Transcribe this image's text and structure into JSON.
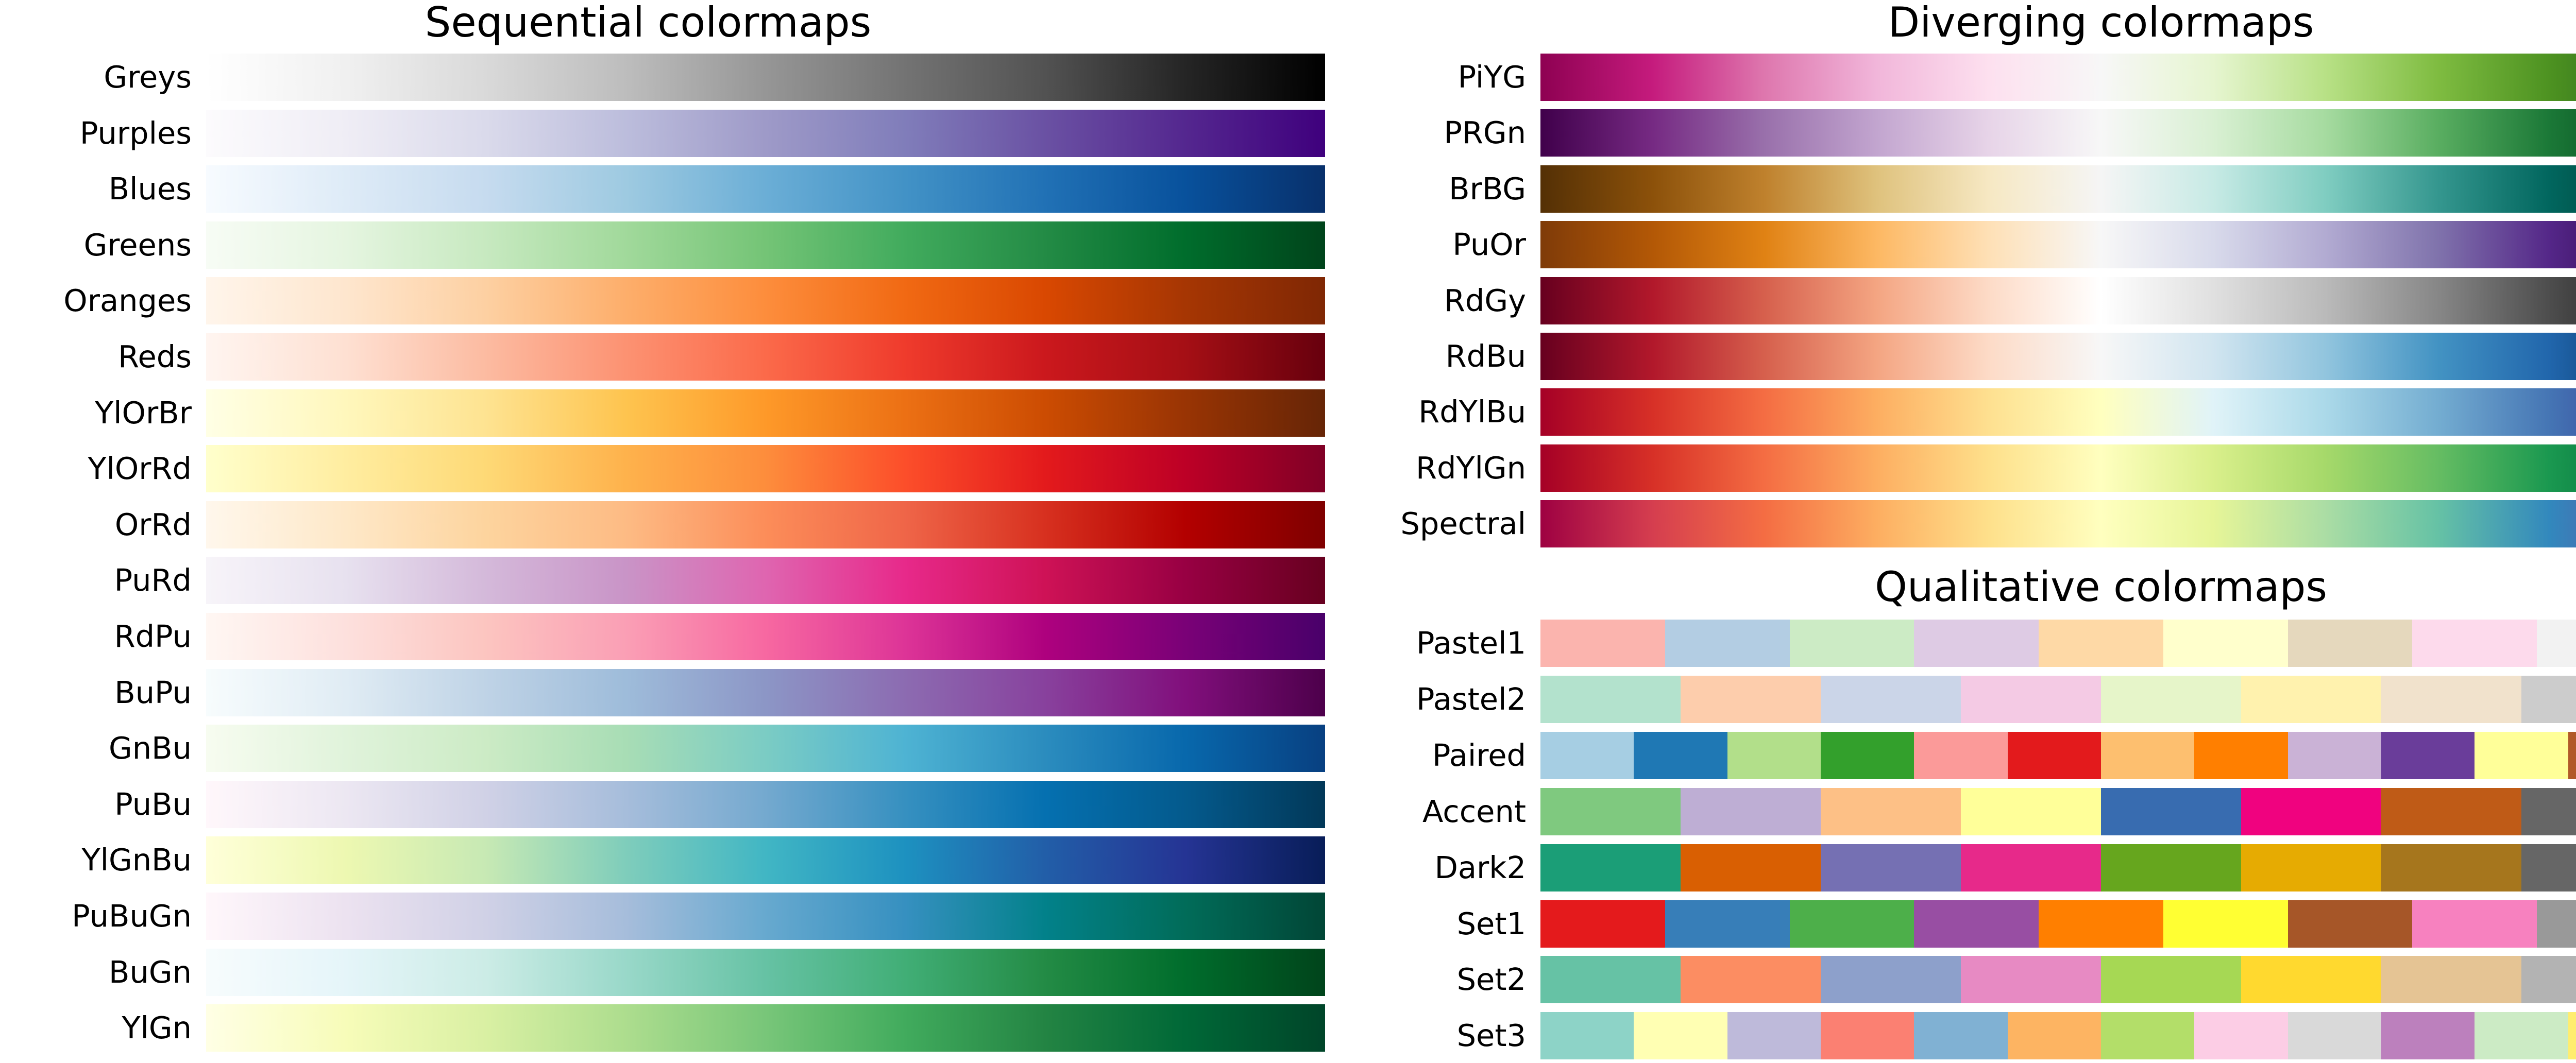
{
  "chart_data": [
    {
      "type": "heatmap",
      "title": "Sequential colormaps",
      "colormaps": [
        {
          "name": "Greys",
          "colors": [
            "#ffffff",
            "#f0f0f0",
            "#d9d9d9",
            "#bdbdbd",
            "#969696",
            "#737373",
            "#525252",
            "#252525",
            "#000000"
          ]
        },
        {
          "name": "Purples",
          "colors": [
            "#fcfbfd",
            "#efedf5",
            "#dadaeb",
            "#bcbddc",
            "#9e9ac8",
            "#807dba",
            "#6a51a3",
            "#54278f",
            "#3f007d"
          ]
        },
        {
          "name": "Blues",
          "colors": [
            "#f7fbff",
            "#deebf7",
            "#c6dbef",
            "#9ecae1",
            "#6baed6",
            "#4292c6",
            "#2171b5",
            "#08519c",
            "#08306b"
          ]
        },
        {
          "name": "Greens",
          "colors": [
            "#f7fcf5",
            "#e5f5e0",
            "#c7e9c0",
            "#a1d99b",
            "#74c476",
            "#41ab5d",
            "#238b45",
            "#006d2c",
            "#00441b"
          ]
        },
        {
          "name": "Oranges",
          "colors": [
            "#fff5eb",
            "#fee6ce",
            "#fdd0a2",
            "#fdae6b",
            "#fd8d3c",
            "#f16913",
            "#d94801",
            "#a63603",
            "#7f2704"
          ]
        },
        {
          "name": "Reds",
          "colors": [
            "#fff5f0",
            "#fee0d2",
            "#fcbba1",
            "#fc9272",
            "#fb6a4a",
            "#ef3b2c",
            "#cb181d",
            "#a50f15",
            "#67000d"
          ]
        },
        {
          "name": "YlOrBr",
          "colors": [
            "#ffffe5",
            "#fff7bc",
            "#fee391",
            "#fec44f",
            "#fe9929",
            "#ec7014",
            "#cc4c02",
            "#993404",
            "#662506"
          ]
        },
        {
          "name": "YlOrRd",
          "colors": [
            "#ffffcc",
            "#ffeda0",
            "#fed976",
            "#feb24c",
            "#fd8d3c",
            "#fc4e2a",
            "#e31a1c",
            "#bd0026",
            "#800026"
          ]
        },
        {
          "name": "OrRd",
          "colors": [
            "#fff7ec",
            "#fee8c8",
            "#fdd49e",
            "#fdbb84",
            "#fc8d59",
            "#ef6548",
            "#d7301f",
            "#b30000",
            "#7f0000"
          ]
        },
        {
          "name": "PuRd",
          "colors": [
            "#f7f4f9",
            "#e7e1ef",
            "#d4b9da",
            "#c994c7",
            "#df65b0",
            "#e7298a",
            "#ce1256",
            "#980043",
            "#67001f"
          ]
        },
        {
          "name": "RdPu",
          "colors": [
            "#fff7f3",
            "#fde0dd",
            "#fcc5c0",
            "#fa9fb5",
            "#f768a1",
            "#dd3497",
            "#ae017e",
            "#7a0177",
            "#49006a"
          ]
        },
        {
          "name": "BuPu",
          "colors": [
            "#f7fcfd",
            "#e0ecf4",
            "#bfd3e6",
            "#9ebcda",
            "#8c96c6",
            "#8c6bb1",
            "#88419d",
            "#810f7c",
            "#4d004b"
          ]
        },
        {
          "name": "GnBu",
          "colors": [
            "#f7fcf0",
            "#e0f3db",
            "#ccebc5",
            "#a8ddb5",
            "#7bccc4",
            "#4eb3d3",
            "#2b8cbe",
            "#0868ac",
            "#084081"
          ]
        },
        {
          "name": "PuBu",
          "colors": [
            "#fff7fb",
            "#ece7f2",
            "#d0d1e6",
            "#a6bddb",
            "#74a9cf",
            "#3690c0",
            "#0570b0",
            "#045a8d",
            "#023858"
          ]
        },
        {
          "name": "YlGnBu",
          "colors": [
            "#ffffd9",
            "#edf8b1",
            "#c7e9b4",
            "#7fcdbb",
            "#41b6c4",
            "#1d91c0",
            "#225ea8",
            "#253494",
            "#081d58"
          ]
        },
        {
          "name": "PuBuGn",
          "colors": [
            "#fff7fb",
            "#ece2f0",
            "#d0d1e6",
            "#a6bddb",
            "#67a9cf",
            "#3690c0",
            "#02818a",
            "#016c59",
            "#014636"
          ]
        },
        {
          "name": "BuGn",
          "colors": [
            "#f7fcfd",
            "#e5f5f9",
            "#ccece6",
            "#99d8c9",
            "#66c2a4",
            "#41ae76",
            "#238b45",
            "#006d2c",
            "#00441b"
          ]
        },
        {
          "name": "YlGn",
          "colors": [
            "#ffffe5",
            "#f7fcb9",
            "#d9f0a3",
            "#addd8e",
            "#78c679",
            "#41ab5d",
            "#238443",
            "#006837",
            "#004529"
          ]
        }
      ]
    },
    {
      "type": "heatmap",
      "title": "Diverging colormaps",
      "colormaps": [
        {
          "name": "PiYG",
          "colors": [
            "#8e0152",
            "#c51b7d",
            "#de77ae",
            "#f1b6da",
            "#fde0ef",
            "#f7f7f7",
            "#e6f5d0",
            "#b8e186",
            "#7fbc41",
            "#4d9221",
            "#276419"
          ]
        },
        {
          "name": "PRGn",
          "colors": [
            "#40004b",
            "#762a83",
            "#9970ab",
            "#c2a5cf",
            "#e7d4e8",
            "#f7f7f7",
            "#d9f0d3",
            "#a6dba0",
            "#5aae61",
            "#1b7837",
            "#00441b"
          ]
        },
        {
          "name": "BrBG",
          "colors": [
            "#543005",
            "#8c510a",
            "#bf812d",
            "#dfc27d",
            "#f6e8c3",
            "#f5f5f5",
            "#c7eae5",
            "#80cdc1",
            "#35978f",
            "#01665e",
            "#003c30"
          ]
        },
        {
          "name": "PuOr",
          "colors": [
            "#7f3b08",
            "#b35806",
            "#e08214",
            "#fdb863",
            "#fee0b6",
            "#f7f7f7",
            "#d8daeb",
            "#b2abd2",
            "#8073ac",
            "#542788",
            "#2d004b"
          ]
        },
        {
          "name": "RdGy",
          "colors": [
            "#67001f",
            "#b2182b",
            "#d6604d",
            "#f4a582",
            "#fddbc7",
            "#ffffff",
            "#e0e0e0",
            "#bababa",
            "#878787",
            "#4d4d4d",
            "#1a1a1a"
          ]
        },
        {
          "name": "RdBu",
          "colors": [
            "#67001f",
            "#b2182b",
            "#d6604d",
            "#f4a582",
            "#fddbc7",
            "#f7f7f7",
            "#d1e5f0",
            "#92c5de",
            "#4393c3",
            "#2166ac",
            "#053061"
          ]
        },
        {
          "name": "RdYlBu",
          "colors": [
            "#a50026",
            "#d73027",
            "#f46d43",
            "#fdae61",
            "#fee090",
            "#ffffbf",
            "#e0f3f8",
            "#abd9e9",
            "#74add1",
            "#4575b4",
            "#313695"
          ]
        },
        {
          "name": "RdYlGn",
          "colors": [
            "#a50026",
            "#d73027",
            "#f46d43",
            "#fdae61",
            "#fee08b",
            "#ffffbf",
            "#d9ef8b",
            "#a6d96a",
            "#66bd63",
            "#1a9850",
            "#006837"
          ]
        },
        {
          "name": "Spectral",
          "colors": [
            "#9e0142",
            "#d53e4f",
            "#f46d43",
            "#fdae61",
            "#fee08b",
            "#ffffbf",
            "#e6f598",
            "#abdda4",
            "#66c2a5",
            "#3288bd",
            "#5e4fa2"
          ]
        }
      ]
    },
    {
      "type": "heatmap",
      "title": "Qualitative colormaps",
      "colormaps": [
        {
          "name": "Pastel1",
          "colors": [
            "#fbb4ae",
            "#b3cde3",
            "#ccebc5",
            "#decbe4",
            "#fed9a6",
            "#ffffcc",
            "#e5d8bd",
            "#fddaec",
            "#f2f2f2"
          ]
        },
        {
          "name": "Pastel2",
          "colors": [
            "#b3e2cd",
            "#fdcdac",
            "#cbd5e8",
            "#f4cae4",
            "#e6f5c9",
            "#fff2ae",
            "#f1e2cc",
            "#cccccc"
          ]
        },
        {
          "name": "Paired",
          "colors": [
            "#a6cee3",
            "#1f78b4",
            "#b2df8a",
            "#33a02c",
            "#fb9a99",
            "#e31a1c",
            "#fdbf6f",
            "#ff7f00",
            "#cab2d6",
            "#6a3d9a",
            "#ffff99",
            "#b15928"
          ]
        },
        {
          "name": "Accent",
          "colors": [
            "#7fc97f",
            "#beaed4",
            "#fdc086",
            "#ffff99",
            "#386cb0",
            "#f0027f",
            "#bf5b17",
            "#666666"
          ]
        },
        {
          "name": "Dark2",
          "colors": [
            "#1b9e77",
            "#d95f02",
            "#7570b3",
            "#e7298a",
            "#66a61e",
            "#e6ab02",
            "#a6761d",
            "#666666"
          ]
        },
        {
          "name": "Set1",
          "colors": [
            "#e41a1c",
            "#377eb8",
            "#4daf4a",
            "#984ea3",
            "#ff7f00",
            "#ffff33",
            "#a65628",
            "#f781bf",
            "#999999"
          ]
        },
        {
          "name": "Set2",
          "colors": [
            "#66c2a5",
            "#fc8d62",
            "#8da0cb",
            "#e78ac3",
            "#a6d854",
            "#ffd92f",
            "#e5c494",
            "#b3b3b3"
          ]
        },
        {
          "name": "Set3",
          "colors": [
            "#8dd3c7",
            "#ffffb3",
            "#bebada",
            "#fb8072",
            "#80b1d3",
            "#fdb462",
            "#b3de69",
            "#fccde5",
            "#d9d9d9",
            "#bc80bd",
            "#ccebc5",
            "#ffed6f"
          ]
        }
      ]
    }
  ]
}
